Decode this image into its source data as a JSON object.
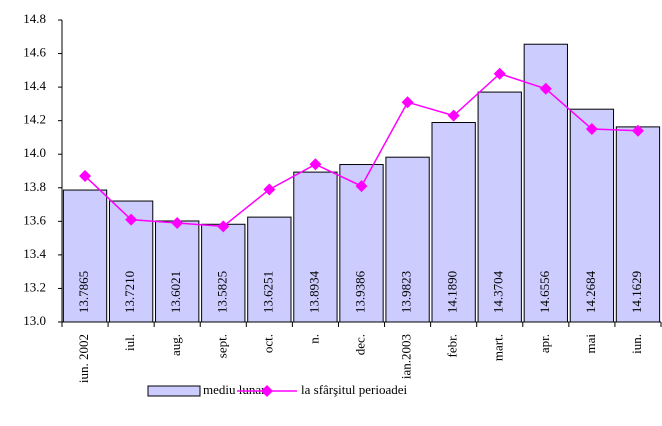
{
  "chart_data": {
    "type": "bar",
    "categories": [
      "iun. 2002",
      "iul.",
      "aug.",
      "sept.",
      "oct.",
      "n.",
      "dec.",
      "ian.2003",
      "febr.",
      "mart.",
      "apr.",
      "mai",
      "iun."
    ],
    "series": [
      {
        "name": "mediu lunar",
        "type": "bar",
        "color": "#ccccff",
        "values": [
          13.7865,
          13.721,
          13.6021,
          13.5825,
          13.6251,
          13.8934,
          13.9386,
          13.9823,
          14.189,
          14.3704,
          14.6556,
          14.2684,
          14.1629
        ],
        "value_labels": [
          "13.7865",
          "13.7210",
          "13.6021",
          "13.5825",
          "13.6251",
          "13.8934",
          "13.9386",
          "13.9823",
          "14.1890",
          "14.3704",
          "14.6556",
          "14.2684",
          "14.1629"
        ]
      },
      {
        "name": "la sfârşitul perioadei",
        "type": "line",
        "color": "#ff00ff",
        "values": [
          13.87,
          13.61,
          13.59,
          13.57,
          13.79,
          13.94,
          13.81,
          14.31,
          14.23,
          14.48,
          14.39,
          14.15,
          14.14
        ]
      }
    ],
    "ylim": [
      13.0,
      14.8
    ],
    "yticks": [
      {
        "value": 13.0,
        "label": "13.0"
      },
      {
        "value": 13.2,
        "label": "13.2"
      },
      {
        "value": 13.4,
        "label": "13.4"
      },
      {
        "value": 13.6,
        "label": "13.6"
      },
      {
        "value": 13.8,
        "label": "13.8"
      },
      {
        "value": 14.0,
        "label": "14.0"
      },
      {
        "value": 14.2,
        "label": "14.2"
      },
      {
        "value": 14.4,
        "label": "14.4"
      },
      {
        "value": 14.6,
        "label": "14.6"
      },
      {
        "value": 14.8,
        "label": "14.8"
      }
    ],
    "legend": "bottom"
  }
}
